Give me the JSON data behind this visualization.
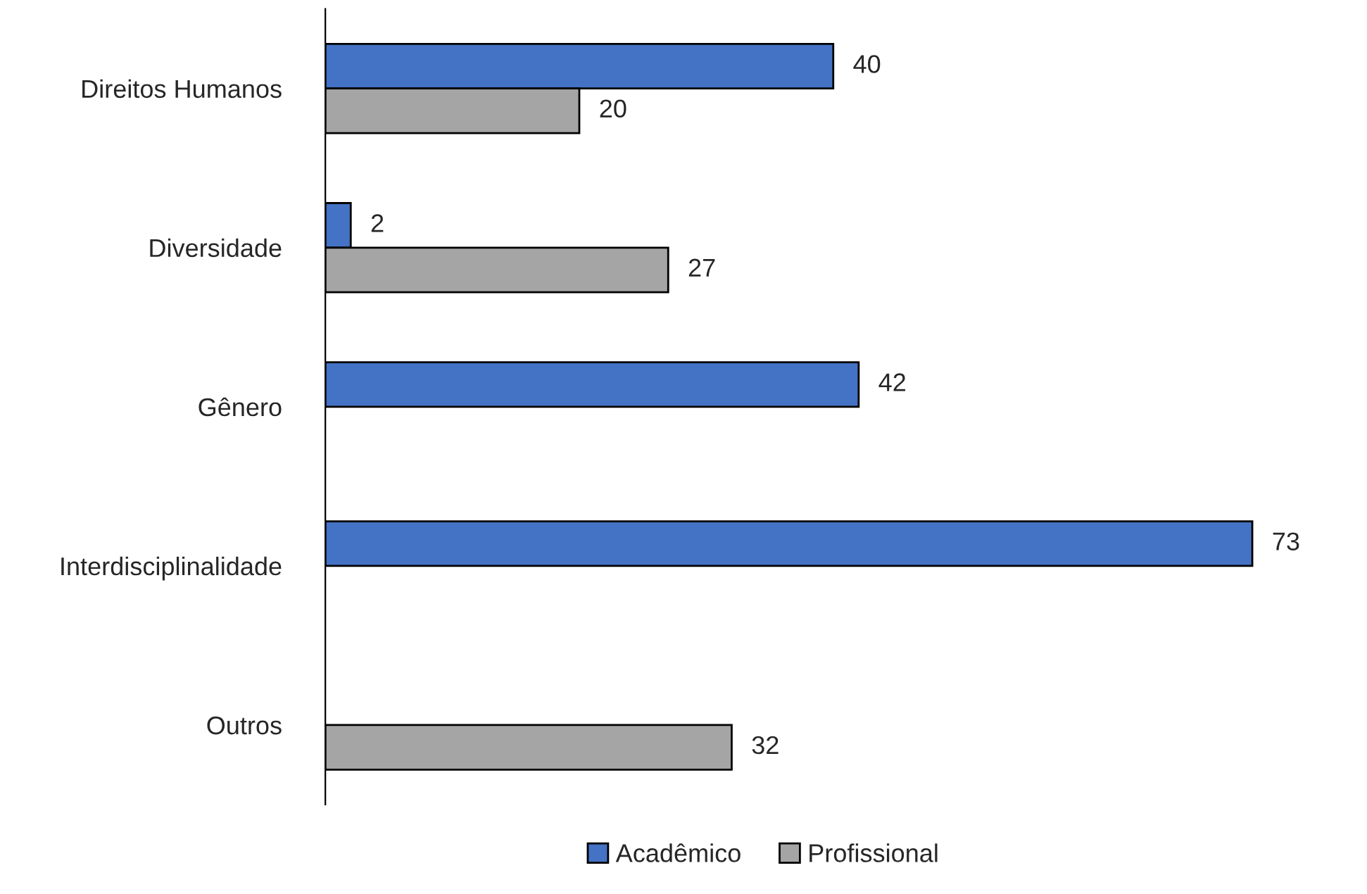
{
  "chart_data": {
    "type": "bar",
    "orientation": "horizontal",
    "categories": [
      "Direitos Humanos",
      "Diversidade",
      "Gênero",
      "Interdisciplinalidade",
      "Outros"
    ],
    "series": [
      {
        "name": "Acadêmico",
        "color": "#4472c4",
        "values": [
          40,
          2,
          42,
          73,
          null
        ]
      },
      {
        "name": "Profissional",
        "color": "#a5a5a5",
        "values": [
          20,
          27,
          null,
          null,
          32
        ]
      }
    ],
    "data_labels": true,
    "legend": "bottom",
    "grid": false
  }
}
